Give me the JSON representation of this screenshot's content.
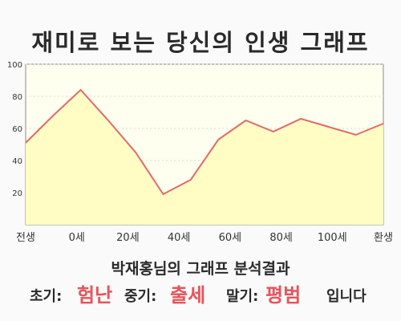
{
  "title": "재미로 보는 당신의 인생 그래프",
  "subtitle": "박재홍님의 그래프 분석결과",
  "result": {
    "early_label": "초기:",
    "early_value": "험난",
    "mid_label": "중기:",
    "mid_value": "출세",
    "late_label": "말기:",
    "late_value": "평범",
    "ending": "입니다"
  },
  "colors": {
    "line": "#e06a6a",
    "fill": "#fffdc4",
    "plot_bg": "#fffff0",
    "accent": "#e8525a"
  },
  "chart_data": {
    "type": "area",
    "title": "",
    "xlabel": "",
    "ylabel": "",
    "ylim": [
      0,
      100
    ],
    "yticks": [
      20,
      40,
      60,
      80,
      100
    ],
    "xtick_labels": [
      "전생",
      "0세",
      "20세",
      "40세",
      "60세",
      "80세",
      "100세",
      "환생"
    ],
    "grid": true,
    "series": [
      {
        "values": [
          51,
          68,
          84,
          65,
          45,
          19,
          28,
          53,
          65,
          58,
          66,
          61,
          56,
          63
        ]
      }
    ]
  }
}
